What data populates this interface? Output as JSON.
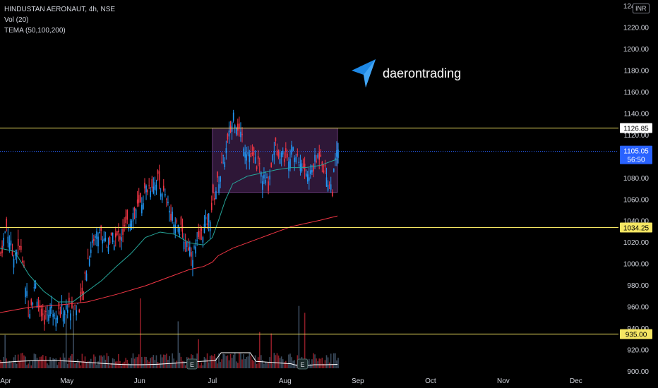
{
  "legend": {
    "symbol_line": "HINDUSTAN AERONAUT, 4h, NSE",
    "volume_line": "Vol (20)",
    "tema_line": "TEMA (50,100,200)"
  },
  "brand": {
    "name": "daerontrading",
    "icon": "paper-plane-icon"
  },
  "currency_label": "INR",
  "colors": {
    "background": "#000000",
    "up": "#2196f3",
    "down": "#f23645",
    "tema_fast": "#26a69a",
    "tema_slow": "#f23645",
    "level_line": "#f5e663",
    "range_box": "#3d1f4a",
    "volume_up": "#3a4a5c",
    "volume_down": "#8c1c26",
    "volume_ma": "#ffffff"
  },
  "chart_data": {
    "type": "candlestick",
    "title": "HINDUSTAN AERONAUT, 4h, NSE",
    "y_axis": {
      "ticks": [
        "1240.00",
        "1220.00",
        "1200.00",
        "1180.00",
        "1160.00",
        "1140.00",
        "1120.00",
        "1100.00",
        "1080.00",
        "1060.00",
        "1040.00",
        "1020.00",
        "1000.00",
        "980.00",
        "960.00",
        "940.00",
        "920.00",
        "900.00"
      ],
      "range": [
        898,
        1246
      ]
    },
    "x_axis": {
      "ticks": [
        {
          "label": "Apr",
          "bar": 0
        },
        {
          "label": "May",
          "bar": 46
        },
        {
          "label": "Jun",
          "bar": 96
        },
        {
          "label": "Jul",
          "bar": 146
        },
        {
          "label": "Aug",
          "bar": 196
        },
        {
          "label": "Sep",
          "bar": 246
        },
        {
          "label": "Oct",
          "bar": 296
        },
        {
          "label": "Nov",
          "bar": 346
        },
        {
          "label": "Dec",
          "bar": 396
        }
      ],
      "total_bars": 420
    },
    "price_path": [
      [
        0,
        1010
      ],
      [
        4,
        1035
      ],
      [
        8,
        1010
      ],
      [
        14,
        1015
      ],
      [
        18,
        970
      ],
      [
        20,
        960
      ],
      [
        24,
        980
      ],
      [
        28,
        945
      ],
      [
        34,
        960
      ],
      [
        40,
        955
      ],
      [
        46,
        960
      ],
      [
        52,
        960
      ],
      [
        56,
        965
      ],
      [
        60,
        1005
      ],
      [
        64,
        1025
      ],
      [
        68,
        1030
      ],
      [
        74,
        1020
      ],
      [
        80,
        1025
      ],
      [
        84,
        1030
      ],
      [
        88,
        1040
      ],
      [
        92,
        1050
      ],
      [
        96,
        1055
      ],
      [
        100,
        1070
      ],
      [
        104,
        1075
      ],
      [
        108,
        1080
      ],
      [
        112,
        1065
      ],
      [
        116,
        1050
      ],
      [
        120,
        1040
      ],
      [
        124,
        1030
      ],
      [
        128,
        1020
      ],
      [
        132,
        1010
      ],
      [
        136,
        1020
      ],
      [
        140,
        1035
      ],
      [
        144,
        1045
      ],
      [
        146,
        1060
      ],
      [
        150,
        1080
      ],
      [
        154,
        1100
      ],
      [
        158,
        1125
      ],
      [
        160,
        1140
      ],
      [
        164,
        1125
      ],
      [
        168,
        1110
      ],
      [
        172,
        1100
      ],
      [
        176,
        1095
      ],
      [
        180,
        1080
      ],
      [
        184,
        1075
      ],
      [
        188,
        1110
      ],
      [
        192,
        1105
      ],
      [
        196,
        1100
      ],
      [
        200,
        1105
      ],
      [
        204,
        1100
      ],
      [
        208,
        1090
      ],
      [
        212,
        1080
      ],
      [
        216,
        1095
      ],
      [
        220,
        1105
      ],
      [
        222,
        1090
      ],
      [
        226,
        1075
      ],
      [
        228,
        1070
      ],
      [
        230,
        1095
      ],
      [
        232,
        1108
      ]
    ],
    "tema_fast": [
      [
        0,
        1015
      ],
      [
        10,
        1012
      ],
      [
        20,
        990
      ],
      [
        30,
        975
      ],
      [
        40,
        965
      ],
      [
        50,
        965
      ],
      [
        60,
        975
      ],
      [
        70,
        985
      ],
      [
        80,
        998
      ],
      [
        90,
        1010
      ],
      [
        100,
        1025
      ],
      [
        110,
        1030
      ],
      [
        120,
        1028
      ],
      [
        130,
        1020
      ],
      [
        140,
        1018
      ],
      [
        146,
        1025
      ],
      [
        150,
        1040
      ],
      [
        155,
        1060
      ],
      [
        160,
        1075
      ],
      [
        170,
        1082
      ],
      [
        180,
        1085
      ],
      [
        190,
        1088
      ],
      [
        200,
        1090
      ],
      [
        210,
        1090
      ],
      [
        220,
        1092
      ],
      [
        232,
        1098
      ]
    ],
    "tema_slow": [
      [
        0,
        955
      ],
      [
        20,
        960
      ],
      [
        40,
        962
      ],
      [
        60,
        965
      ],
      [
        80,
        972
      ],
      [
        100,
        980
      ],
      [
        110,
        985
      ],
      [
        120,
        990
      ],
      [
        130,
        995
      ],
      [
        140,
        998
      ],
      [
        146,
        1002
      ],
      [
        150,
        1008
      ],
      [
        160,
        1015
      ],
      [
        170,
        1020
      ],
      [
        180,
        1025
      ],
      [
        190,
        1030
      ],
      [
        200,
        1035
      ],
      [
        210,
        1038
      ],
      [
        220,
        1041
      ],
      [
        232,
        1045
      ]
    ],
    "levels": [
      {
        "value": 1126.85,
        "label": "1126.85",
        "color": "#f5e663",
        "label_bg": "#ffffff",
        "label_fg": "#000000"
      },
      {
        "value": 1034.25,
        "label": "1034.25",
        "color": "#f5e663",
        "label_bg": "#f5e663",
        "label_fg": "#000000"
      },
      {
        "value": 935.0,
        "label": "935.00",
        "color": "#f5e663",
        "label_bg": "#f5e663",
        "label_fg": "#000000"
      }
    ],
    "last_price": {
      "value": 1105.05,
      "label": "1105.05",
      "countdown": "56:50",
      "color": "#2962ff"
    },
    "range_box": {
      "x_start": 146,
      "x_end": 232,
      "y_low": 1067,
      "y_high": 1126.85
    },
    "events": [
      {
        "bar": 132,
        "label": "E"
      },
      {
        "bar": 208,
        "label": "E"
      }
    ]
  }
}
